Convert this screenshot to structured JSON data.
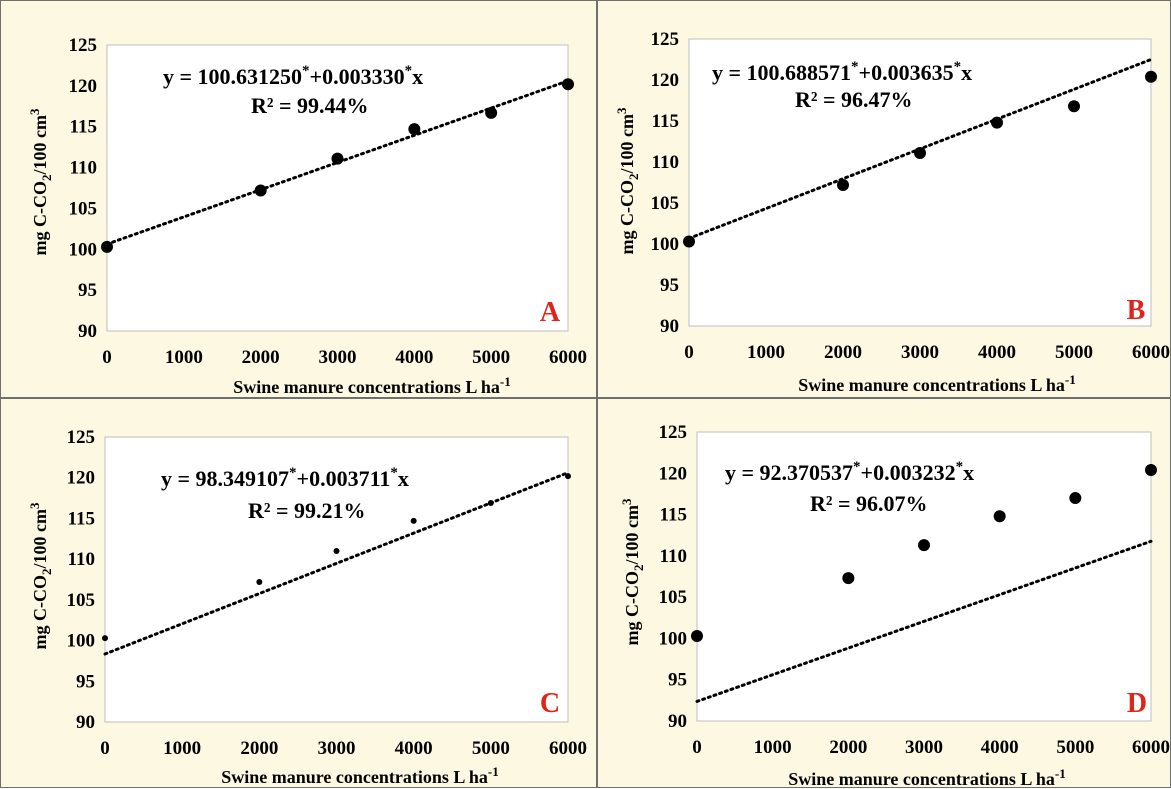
{
  "colors": {
    "panel_background": "#fcf8e2",
    "plot_background": "#ffffff",
    "marker": "#000000",
    "trendline": "#000000",
    "panel_label": "#e0241b"
  },
  "chart_data": [
    {
      "type": "scatter",
      "panel_label": "A",
      "x": [
        0,
        2000,
        3000,
        4000,
        5000,
        6000
      ],
      "y": [
        100.3,
        107.2,
        111.1,
        114.7,
        116.7,
        120.2
      ],
      "trendline": {
        "intercept": 100.63125,
        "slope": 0.00333,
        "style": "dotted"
      },
      "equation": {
        "prefix": "y = 100.631250",
        "mid": "+0.003330",
        "suffix": "x",
        "star": "*"
      },
      "r2": "R² = 99.44%",
      "xlabel": "Swine manure concentrations L ha",
      "xlabel_sup": "-1",
      "ylabel": "mg C-CO",
      "ylabel_sub": "2",
      "ylabel_tail": "/100 cm",
      "ylabel_sup": "3",
      "xlim": [
        0,
        6000
      ],
      "ylim": [
        90,
        125
      ],
      "xticks": [
        0,
        1000,
        2000,
        3000,
        4000,
        5000,
        6000
      ],
      "yticks": [
        90,
        95,
        100,
        105,
        110,
        115,
        120,
        125
      ],
      "grid": false,
      "marker_size": "large"
    },
    {
      "type": "scatter",
      "panel_label": "B",
      "x": [
        0,
        2000,
        3000,
        4000,
        5000,
        6000
      ],
      "y": [
        100.3,
        107.2,
        111.1,
        114.8,
        116.8,
        120.4
      ],
      "trendline": {
        "intercept": 100.688571,
        "slope": 0.003635,
        "style": "dotted"
      },
      "equation": {
        "prefix": "y = 100.688571",
        "mid": "+0.003635",
        "suffix": "x",
        "star": "*"
      },
      "r2": "R² = 96.47%",
      "xlabel": "Swine manure concentrations L ha",
      "xlabel_sup": "-1",
      "ylabel": "mg C-CO",
      "ylabel_sub": "2",
      "ylabel_tail": "/100 cm",
      "ylabel_sup": "3",
      "xlim": [
        0,
        6000
      ],
      "ylim": [
        90,
        125
      ],
      "xticks": [
        0,
        1000,
        2000,
        3000,
        4000,
        5000,
        6000
      ],
      "yticks": [
        90,
        95,
        100,
        105,
        110,
        115,
        120,
        125
      ],
      "grid": false,
      "marker_size": "large"
    },
    {
      "type": "scatter",
      "panel_label": "C",
      "x": [
        0,
        2000,
        3000,
        4000,
        5000,
        6000
      ],
      "y": [
        100.3,
        107.2,
        111.0,
        114.7,
        116.9,
        120.2
      ],
      "trendline": {
        "intercept": 98.349107,
        "slope": 0.003711,
        "style": "dotted"
      },
      "equation": {
        "prefix": "y = 98.349107",
        "mid": "+0.003711",
        "suffix": "x",
        "star": "*"
      },
      "r2": "R² = 99.21%",
      "xlabel": "Swine manure concentrations L ha",
      "xlabel_sup": "-1",
      "ylabel": "mg C-CO",
      "ylabel_sub": "2",
      "ylabel_tail": "/100 cm",
      "ylabel_sup": "3",
      "xlim": [
        0,
        6000
      ],
      "ylim": [
        90,
        125
      ],
      "xticks": [
        0,
        1000,
        2000,
        3000,
        4000,
        5000,
        6000
      ],
      "yticks": [
        90,
        95,
        100,
        105,
        110,
        115,
        120,
        125
      ],
      "grid": false,
      "marker_size": "small"
    },
    {
      "type": "scatter",
      "panel_label": "D",
      "x": [
        0,
        2000,
        3000,
        4000,
        5000,
        6000
      ],
      "y": [
        100.3,
        107.3,
        111.3,
        114.8,
        117.0,
        120.4
      ],
      "trendline": {
        "intercept": 92.370537,
        "slope": 0.003232,
        "style": "dotted"
      },
      "equation": {
        "prefix": "y = 92.370537",
        "mid": "+0.003232",
        "suffix": "x",
        "star": "*"
      },
      "r2": "R² = 96.07%",
      "xlabel": "Swine manure concentrations L ha",
      "xlabel_sup": "-1",
      "ylabel": "mg C-CO",
      "ylabel_sub": "2",
      "ylabel_tail": "/100 cm",
      "ylabel_sup": "3",
      "xlim": [
        0,
        6000
      ],
      "ylim": [
        90,
        125
      ],
      "xticks": [
        0,
        1000,
        2000,
        3000,
        4000,
        5000,
        6000
      ],
      "yticks": [
        90,
        95,
        100,
        105,
        110,
        115,
        120,
        125
      ],
      "grid": false,
      "marker_size": "large"
    }
  ]
}
